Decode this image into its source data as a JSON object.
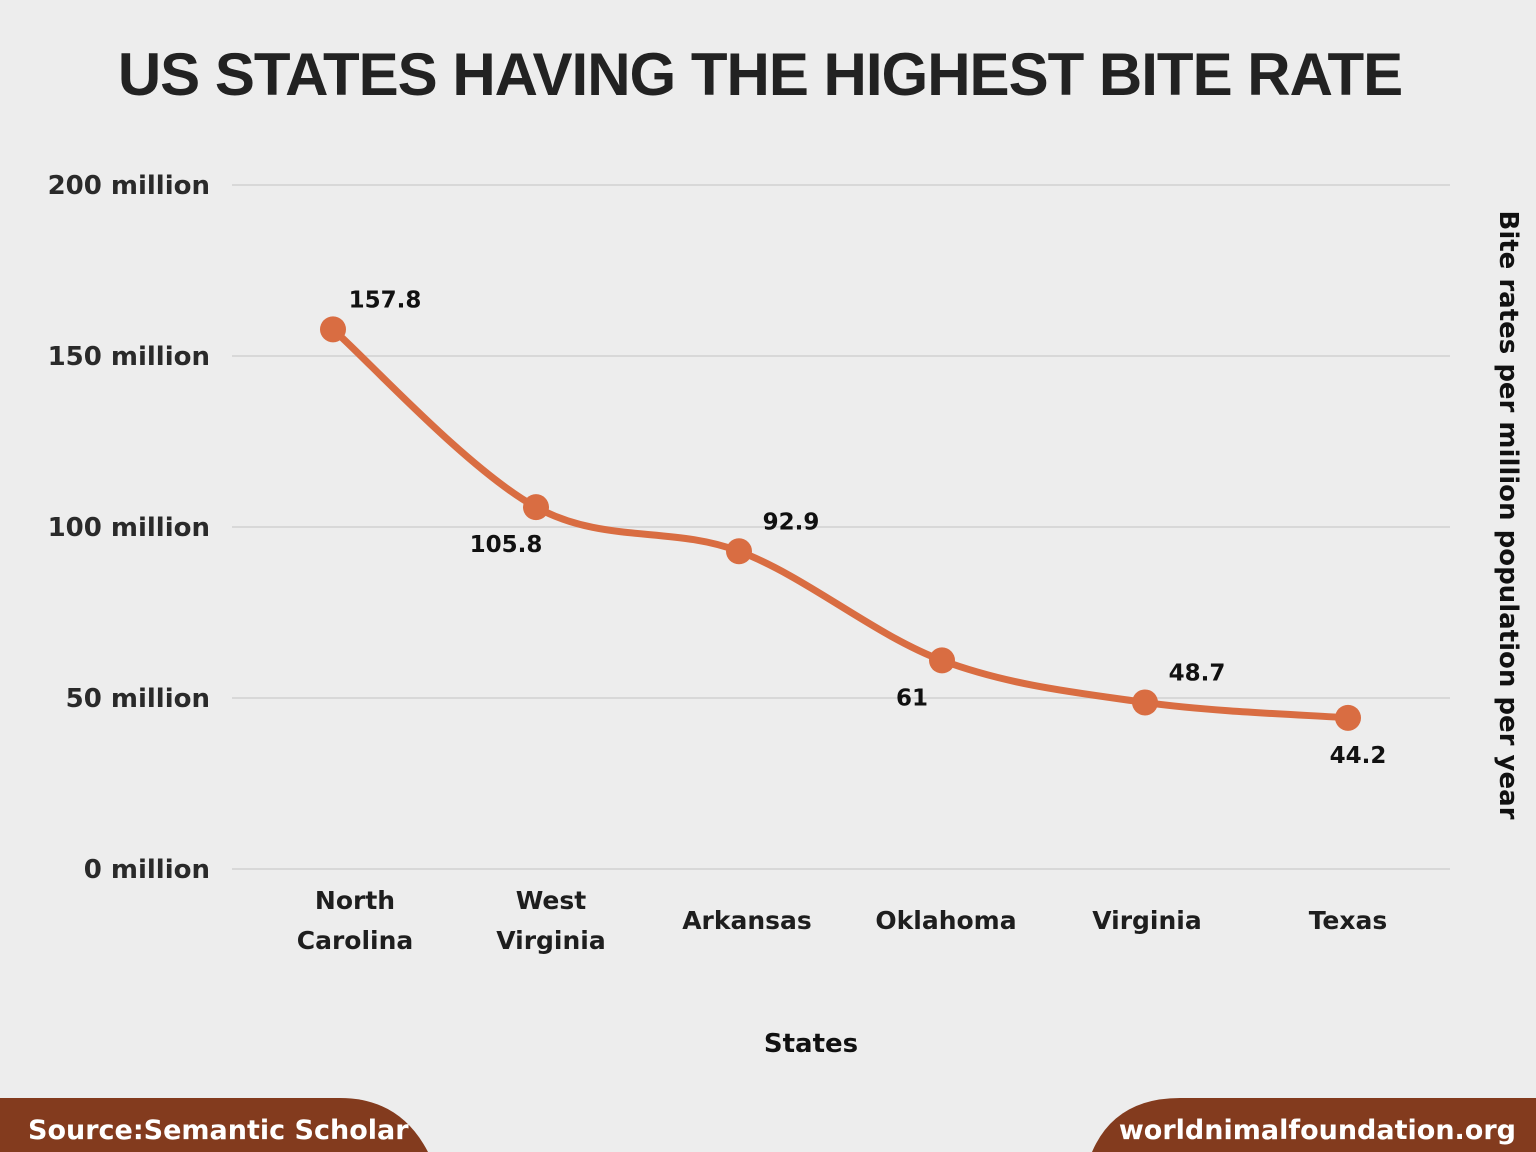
{
  "chart_data": {
    "type": "line",
    "title": "US STATES HAVING THE HIGHEST BITE RATE",
    "xlabel": "States",
    "ylabel": "Bite rates per million population per year",
    "categories": [
      [
        "North",
        "Carolina"
      ],
      [
        "West",
        "Virginia"
      ],
      [
        "Arkansas"
      ],
      [
        "Oklahoma"
      ],
      [
        "Virginia"
      ],
      [
        "Texas"
      ]
    ],
    "values": [
      157.8,
      105.8,
      92.9,
      61,
      48.7,
      44.2
    ],
    "data_labels": [
      "157.8",
      "105.8",
      "92.9",
      "61",
      "48.7",
      "44.2"
    ],
    "ylim": [
      0,
      200
    ],
    "yticks": [
      0,
      50,
      100,
      150,
      200
    ],
    "ytick_labels": [
      "0 million",
      "50 million",
      "100 million",
      "150 million",
      "200 million"
    ],
    "grid": true,
    "smooth": true,
    "legend": "none",
    "line_color": "#d96d42"
  },
  "footer": {
    "source": "Source:Semantic Scholar",
    "website": "worldnimalfoundation.org",
    "color": "#833b1e"
  }
}
